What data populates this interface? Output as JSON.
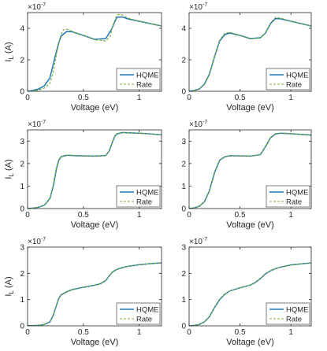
{
  "colors": {
    "hqme": "#1f77b4",
    "rate": "#77ac30",
    "axis": "#262626"
  },
  "chart_data": [
    {
      "type": "line",
      "xlabel": "Voltage (eV)",
      "ylabel_main": "I",
      "ylabel_sub": "L",
      "ylabel_unit": " (A)",
      "exponent_base": "×10",
      "exponent_power": "-7",
      "xlim": [
        0,
        1.2
      ],
      "ylim": [
        0,
        5
      ],
      "xticks": [
        0,
        0.5,
        1
      ],
      "xtick_labels": [
        "0",
        "0.5",
        "1"
      ],
      "yticks": [
        0,
        2,
        4
      ],
      "ytick_labels": [
        "0",
        "2",
        "4"
      ],
      "legend": "bottom-right",
      "grid": false,
      "series": [
        {
          "name": "HQME",
          "style": "solid",
          "x": [
            0,
            0.05,
            0.1,
            0.15,
            0.2,
            0.25,
            0.28,
            0.3,
            0.35,
            0.4,
            0.5,
            0.6,
            0.7,
            0.75,
            0.78,
            0.8,
            0.85,
            0.9,
            1.0,
            1.1,
            1.2
          ],
          "y": [
            0,
            0.05,
            0.15,
            0.35,
            0.85,
            2.3,
            3.1,
            3.5,
            3.8,
            3.78,
            3.55,
            3.3,
            3.35,
            3.9,
            4.4,
            4.7,
            4.72,
            4.6,
            4.45,
            4.3,
            4.15
          ]
        },
        {
          "name": "Rate",
          "style": "dashed",
          "x": [
            0,
            0.05,
            0.1,
            0.15,
            0.2,
            0.23,
            0.26,
            0.29,
            0.32,
            0.35,
            0.4,
            0.5,
            0.6,
            0.7,
            0.74,
            0.77,
            0.8,
            0.83,
            0.86,
            0.9,
            1.0,
            1.1,
            1.2
          ],
          "y": [
            0,
            0.02,
            0.08,
            0.2,
            0.5,
            1.2,
            2.4,
            3.4,
            3.9,
            3.95,
            3.8,
            3.55,
            3.28,
            3.2,
            3.5,
            4.3,
            4.85,
            4.9,
            4.8,
            4.65,
            4.45,
            4.3,
            4.15
          ]
        }
      ]
    },
    {
      "type": "line",
      "xlabel": "Voltage (eV)",
      "ylabel_main": "",
      "ylabel_sub": "",
      "ylabel_unit": "",
      "exponent_base": "×10",
      "exponent_power": "-7",
      "xlim": [
        0,
        1.2
      ],
      "ylim": [
        0,
        5
      ],
      "xticks": [
        0,
        0.5,
        1
      ],
      "xtick_labels": [
        "0",
        "0.5",
        "1"
      ],
      "yticks": [
        0,
        2,
        4
      ],
      "ytick_labels": [
        "0",
        "2",
        "4"
      ],
      "legend": "bottom-right",
      "grid": false,
      "series": [
        {
          "name": "HQME",
          "style": "solid",
          "x": [
            0,
            0.05,
            0.1,
            0.15,
            0.2,
            0.25,
            0.3,
            0.35,
            0.4,
            0.5,
            0.6,
            0.7,
            0.75,
            0.8,
            0.85,
            0.9,
            1.0,
            1.1,
            1.2
          ],
          "y": [
            0,
            0.05,
            0.15,
            0.45,
            1.1,
            2.2,
            3.2,
            3.6,
            3.7,
            3.55,
            3.35,
            3.4,
            3.7,
            4.3,
            4.62,
            4.6,
            4.45,
            4.3,
            4.15
          ]
        },
        {
          "name": "Rate",
          "style": "dashed",
          "x": [
            0,
            0.05,
            0.1,
            0.15,
            0.2,
            0.25,
            0.3,
            0.35,
            0.4,
            0.5,
            0.6,
            0.7,
            0.75,
            0.8,
            0.85,
            0.9,
            1.0,
            1.1,
            1.2
          ],
          "y": [
            0,
            0.04,
            0.13,
            0.42,
            1.05,
            2.2,
            3.25,
            3.68,
            3.75,
            3.55,
            3.33,
            3.38,
            3.72,
            4.35,
            4.7,
            4.65,
            4.45,
            4.3,
            4.15
          ]
        }
      ]
    },
    {
      "type": "line",
      "xlabel": "Voltage (eV)",
      "ylabel_main": "I",
      "ylabel_sub": "L",
      "ylabel_unit": " (A)",
      "exponent_base": "×10",
      "exponent_power": "-7",
      "xlim": [
        0,
        1.2
      ],
      "ylim": [
        0,
        3.5
      ],
      "xticks": [
        0,
        0.5,
        1
      ],
      "xtick_labels": [
        "0",
        "0.5",
        "1"
      ],
      "yticks": [
        0,
        1,
        2,
        3
      ],
      "ytick_labels": [
        "0",
        "1",
        "2",
        "3"
      ],
      "legend": "bottom-right",
      "grid": false,
      "series": [
        {
          "name": "HQME",
          "style": "solid",
          "x": [
            0,
            0.05,
            0.1,
            0.15,
            0.2,
            0.23,
            0.26,
            0.28,
            0.3,
            0.35,
            0.4,
            0.5,
            0.6,
            0.7,
            0.73,
            0.76,
            0.78,
            0.8,
            0.85,
            0.9,
            1.0,
            1.1,
            1.2
          ],
          "y": [
            0,
            0.02,
            0.06,
            0.15,
            0.45,
            1.0,
            1.8,
            2.15,
            2.3,
            2.37,
            2.36,
            2.34,
            2.33,
            2.36,
            2.55,
            2.95,
            3.2,
            3.32,
            3.38,
            3.37,
            3.35,
            3.32,
            3.28
          ]
        },
        {
          "name": "Rate",
          "style": "dashed",
          "x": [
            0,
            0.05,
            0.1,
            0.15,
            0.2,
            0.23,
            0.26,
            0.28,
            0.3,
            0.35,
            0.4,
            0.5,
            0.6,
            0.7,
            0.73,
            0.76,
            0.78,
            0.8,
            0.85,
            0.9,
            1.0,
            1.1,
            1.2
          ],
          "y": [
            0,
            0.02,
            0.06,
            0.15,
            0.47,
            1.05,
            1.85,
            2.18,
            2.32,
            2.38,
            2.37,
            2.35,
            2.33,
            2.36,
            2.56,
            2.97,
            3.22,
            3.34,
            3.39,
            3.38,
            3.35,
            3.32,
            3.28
          ]
        }
      ]
    },
    {
      "type": "line",
      "xlabel": "Voltage (eV)",
      "ylabel_main": "",
      "ylabel_sub": "",
      "ylabel_unit": "",
      "exponent_base": "×10",
      "exponent_power": "-7",
      "xlim": [
        0,
        1.2
      ],
      "ylim": [
        0,
        3.5
      ],
      "xticks": [
        0,
        0.5,
        1
      ],
      "xtick_labels": [
        "0",
        "0.5",
        "1"
      ],
      "yticks": [
        0,
        1,
        2,
        3
      ],
      "ytick_labels": [
        "0",
        "1",
        "2",
        "3"
      ],
      "legend": "bottom-right",
      "grid": false,
      "series": [
        {
          "name": "HQME",
          "style": "solid",
          "x": [
            0,
            0.05,
            0.1,
            0.15,
            0.2,
            0.25,
            0.3,
            0.35,
            0.4,
            0.5,
            0.6,
            0.7,
            0.75,
            0.8,
            0.85,
            0.9,
            1.0,
            1.1,
            1.2
          ],
          "y": [
            0,
            0.03,
            0.1,
            0.3,
            0.8,
            1.6,
            2.15,
            2.3,
            2.35,
            2.34,
            2.33,
            2.4,
            2.75,
            3.15,
            3.32,
            3.35,
            3.33,
            3.3,
            3.27
          ]
        },
        {
          "name": "Rate",
          "style": "dashed",
          "x": [
            0,
            0.05,
            0.1,
            0.15,
            0.2,
            0.25,
            0.3,
            0.35,
            0.4,
            0.5,
            0.6,
            0.7,
            0.75,
            0.8,
            0.85,
            0.9,
            1.0,
            1.1,
            1.2
          ],
          "y": [
            0,
            0.03,
            0.1,
            0.3,
            0.82,
            1.62,
            2.16,
            2.31,
            2.35,
            2.34,
            2.33,
            2.41,
            2.76,
            3.16,
            3.33,
            3.36,
            3.33,
            3.3,
            3.27
          ]
        }
      ]
    },
    {
      "type": "line",
      "xlabel": "Voltage (eV)",
      "ylabel_main": "I",
      "ylabel_sub": "L",
      "ylabel_unit": " (A)",
      "exponent_base": "×10",
      "exponent_power": "-7",
      "xlim": [
        0,
        1.2
      ],
      "ylim": [
        0,
        3
      ],
      "xticks": [
        0,
        0.5,
        1
      ],
      "xtick_labels": [
        "0",
        "0.5",
        "1"
      ],
      "yticks": [
        0,
        1,
        2,
        3
      ],
      "ytick_labels": [
        "0",
        "1",
        "2",
        "3"
      ],
      "legend": "bottom-right",
      "grid": false,
      "series": [
        {
          "name": "HQME",
          "style": "solid",
          "x": [
            0,
            0.05,
            0.1,
            0.15,
            0.2,
            0.23,
            0.26,
            0.28,
            0.3,
            0.35,
            0.4,
            0.5,
            0.6,
            0.65,
            0.7,
            0.73,
            0.76,
            0.8,
            0.85,
            0.9,
            1.0,
            1.1,
            1.2
          ],
          "y": [
            0,
            0.01,
            0.02,
            0.05,
            0.15,
            0.4,
            0.8,
            1.05,
            1.18,
            1.3,
            1.38,
            1.47,
            1.55,
            1.6,
            1.72,
            1.9,
            2.05,
            2.15,
            2.22,
            2.27,
            2.33,
            2.37,
            2.4
          ]
        },
        {
          "name": "Rate",
          "style": "dashed",
          "x": [
            0,
            0.05,
            0.1,
            0.15,
            0.2,
            0.23,
            0.26,
            0.28,
            0.3,
            0.35,
            0.4,
            0.5,
            0.6,
            0.65,
            0.7,
            0.73,
            0.76,
            0.8,
            0.85,
            0.9,
            1.0,
            1.1,
            1.2
          ],
          "y": [
            0,
            0.01,
            0.02,
            0.05,
            0.16,
            0.42,
            0.82,
            1.06,
            1.19,
            1.31,
            1.38,
            1.47,
            1.55,
            1.61,
            1.73,
            1.91,
            2.06,
            2.15,
            2.22,
            2.27,
            2.33,
            2.37,
            2.4
          ]
        }
      ]
    },
    {
      "type": "line",
      "xlabel": "Voltage (eV)",
      "ylabel_main": "",
      "ylabel_sub": "",
      "ylabel_unit": "",
      "exponent_base": "×10",
      "exponent_power": "-7",
      "xlim": [
        0,
        1.2
      ],
      "ylim": [
        0,
        3
      ],
      "xticks": [
        0,
        0.5,
        1
      ],
      "xtick_labels": [
        "0",
        "0.5",
        "1"
      ],
      "yticks": [
        0,
        1,
        2,
        3
      ],
      "ytick_labels": [
        "0",
        "1",
        "2",
        "3"
      ],
      "legend": "bottom-right",
      "grid": false,
      "series": [
        {
          "name": "HQME",
          "style": "solid",
          "x": [
            0,
            0.05,
            0.1,
            0.15,
            0.2,
            0.25,
            0.3,
            0.35,
            0.4,
            0.5,
            0.6,
            0.65,
            0.7,
            0.75,
            0.8,
            0.85,
            0.9,
            1.0,
            1.1,
            1.2
          ],
          "y": [
            0,
            0.02,
            0.05,
            0.15,
            0.35,
            0.7,
            1.0,
            1.2,
            1.33,
            1.45,
            1.55,
            1.65,
            1.8,
            1.98,
            2.1,
            2.18,
            2.24,
            2.32,
            2.36,
            2.4
          ]
        },
        {
          "name": "Rate",
          "style": "dashed",
          "x": [
            0,
            0.05,
            0.1,
            0.15,
            0.2,
            0.25,
            0.3,
            0.35,
            0.4,
            0.5,
            0.6,
            0.65,
            0.7,
            0.75,
            0.8,
            0.85,
            0.9,
            1.0,
            1.1,
            1.2
          ],
          "y": [
            0,
            0.02,
            0.05,
            0.15,
            0.36,
            0.71,
            1.01,
            1.21,
            1.33,
            1.45,
            1.55,
            1.66,
            1.81,
            1.99,
            2.1,
            2.18,
            2.24,
            2.32,
            2.36,
            2.4
          ]
        }
      ]
    }
  ]
}
